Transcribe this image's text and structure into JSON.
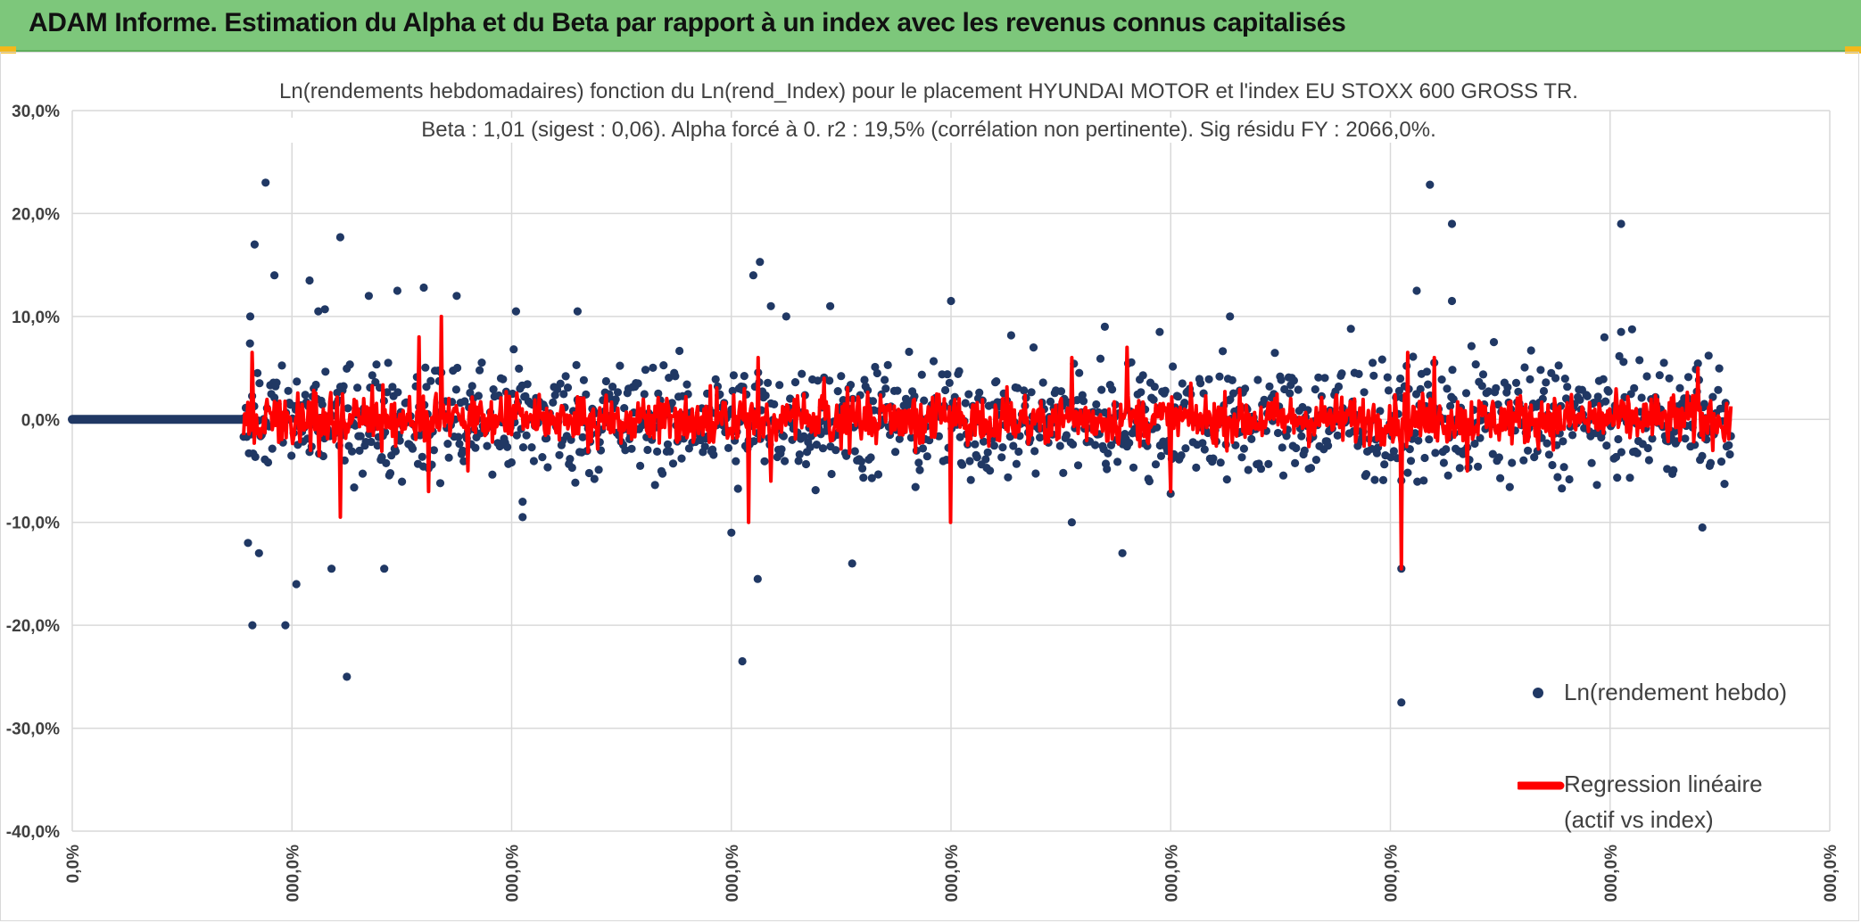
{
  "header": {
    "title": "ADAM Informe. Estimation du Alpha et du Beta par rapport à un index avec les revenus connus capitalisés"
  },
  "colors": {
    "banner": "#7dc77b",
    "points": "#203864",
    "regression": "#ff0000",
    "grid": "#d9d9d9"
  },
  "chart_data": {
    "type": "scatter",
    "title_line1": "Ln(rendements hebdomadaires) fonction du Ln(rend_Index) pour le placement HYUNDAI MOTOR et l'index EU STOXX 600 GROSS TR.",
    "title_line2": "Beta : 1,01 (sigest : 0,06). Alpha forcé à 0. r2 : 19,5% (corrélation non pertinente). Sig résidu FY : 2066,0%.",
    "ylim": [
      -0.4,
      0.3
    ],
    "y_ticks": [
      0.3,
      0.2,
      0.1,
      0.0,
      -0.1,
      -0.2,
      -0.3,
      -0.4
    ],
    "y_tick_labels": [
      "30,0%",
      "20,0%",
      "10,0%",
      "0,0%",
      "-10,0%",
      "-20,0%",
      "-30,0%",
      "-40,0%"
    ],
    "xlim": [
      0,
      8
    ],
    "x_ticks": [
      0,
      1,
      2,
      3,
      4,
      5,
      6,
      7,
      8
    ],
    "x_tick_labels": [
      "0,0%",
      "000,0%",
      "000,0%",
      "000,0%",
      "000,0%",
      "000,0%",
      "000,0%",
      "000,0%",
      "000,0%"
    ],
    "grid": true,
    "legend_position": "right",
    "series": [
      {
        "name": "Ln(rendement hebdo)",
        "kind": "points",
        "description": "weekly log returns of the asset"
      },
      {
        "name": "Regression linéaire (actif vs index)",
        "kind": "line",
        "description": "fitted values beta × index return"
      }
    ],
    "flat_segment_x": [
      0,
      0.78
    ],
    "data_start_x": 0.78,
    "data_end_x": 7.55,
    "outliers": [
      [
        0.8,
        -0.12
      ],
      [
        0.81,
        0.1
      ],
      [
        0.82,
        -0.2
      ],
      [
        0.83,
        0.17
      ],
      [
        0.88,
        0.23
      ],
      [
        0.92,
        0.14
      ],
      [
        0.97,
        -0.2
      ],
      [
        1.02,
        -0.16
      ],
      [
        1.08,
        0.135
      ],
      [
        1.15,
        0.107
      ],
      [
        1.18,
        -0.145
      ],
      [
        1.22,
        0.177
      ],
      [
        1.25,
        -0.25
      ],
      [
        1.35,
        0.12
      ],
      [
        1.48,
        0.125
      ],
      [
        1.6,
        0.128
      ],
      [
        1.75,
        0.12
      ],
      [
        2.02,
        0.105
      ],
      [
        2.05,
        -0.08
      ],
      [
        2.3,
        0.105
      ],
      [
        2.05,
        -0.095
      ],
      [
        3.05,
        -0.235
      ],
      [
        3.12,
        -0.155
      ],
      [
        3.1,
        0.14
      ],
      [
        3.13,
        0.153
      ],
      [
        3.18,
        0.11
      ],
      [
        3.25,
        0.1
      ],
      [
        3.45,
        0.11
      ],
      [
        3.55,
        -0.14
      ],
      [
        4.0,
        0.115
      ],
      [
        4.55,
        -0.1
      ],
      [
        4.7,
        0.09
      ],
      [
        4.95,
        0.085
      ],
      [
        5.27,
        0.1
      ],
      [
        5.82,
        0.088
      ],
      [
        6.05,
        -0.275
      ],
      [
        6.05,
        -0.145
      ],
      [
        6.18,
        0.228
      ],
      [
        6.28,
        0.19
      ],
      [
        6.28,
        0.115
      ],
      [
        7.05,
        0.19
      ],
      [
        7.05,
        0.085
      ],
      [
        7.42,
        -0.105
      ],
      [
        1.12,
        0.105
      ],
      [
        1.42,
        -0.145
      ],
      [
        4.78,
        -0.13
      ],
      [
        6.12,
        0.125
      ],
      [
        3.0,
        -0.11
      ],
      [
        0.85,
        -0.13
      ]
    ],
    "regression_spikes": [
      [
        0.82,
        0.065
      ],
      [
        1.22,
        -0.095
      ],
      [
        1.58,
        0.08
      ],
      [
        1.62,
        -0.07
      ],
      [
        1.68,
        0.1
      ],
      [
        1.8,
        -0.05
      ],
      [
        3.08,
        -0.1
      ],
      [
        3.12,
        0.06
      ],
      [
        3.18,
        -0.06
      ],
      [
        3.42,
        0.04
      ],
      [
        4.0,
        -0.1
      ],
      [
        4.55,
        0.06
      ],
      [
        4.8,
        0.07
      ],
      [
        5.0,
        -0.07
      ],
      [
        6.05,
        -0.145
      ],
      [
        6.08,
        0.065
      ],
      [
        6.2,
        0.06
      ],
      [
        6.35,
        -0.05
      ],
      [
        7.4,
        -0.085
      ],
      [
        7.4,
        0.05
      ]
    ]
  },
  "legend": {
    "points_label": "Ln(rendement hebdo)",
    "line_label_1": "Regression linéaire",
    "line_label_2": "(actif vs index)"
  }
}
